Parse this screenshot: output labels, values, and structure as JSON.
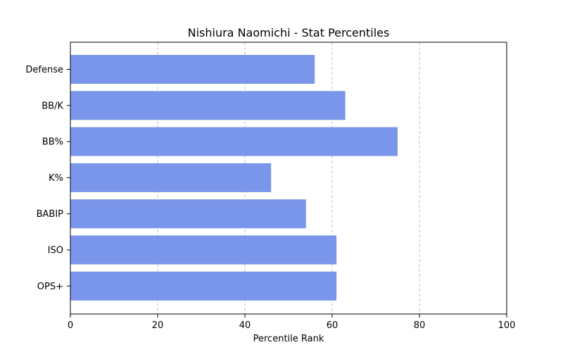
{
  "chart_data": {
    "type": "bar",
    "orientation": "horizontal",
    "title": "Nishiura Naomichi - Stat Percentiles",
    "xlabel": "Percentile Rank",
    "ylabel": "",
    "categories": [
      "Defense",
      "BB/K",
      "BB%",
      "K%",
      "BABIP",
      "ISO",
      "OPS+"
    ],
    "values": [
      56,
      63,
      75,
      46,
      54,
      61,
      61
    ],
    "xlim": [
      0,
      100
    ],
    "xticks": [
      0,
      20,
      40,
      60,
      80,
      100
    ],
    "grid": "vertical dashed",
    "bar_color": "#7a96ea"
  }
}
